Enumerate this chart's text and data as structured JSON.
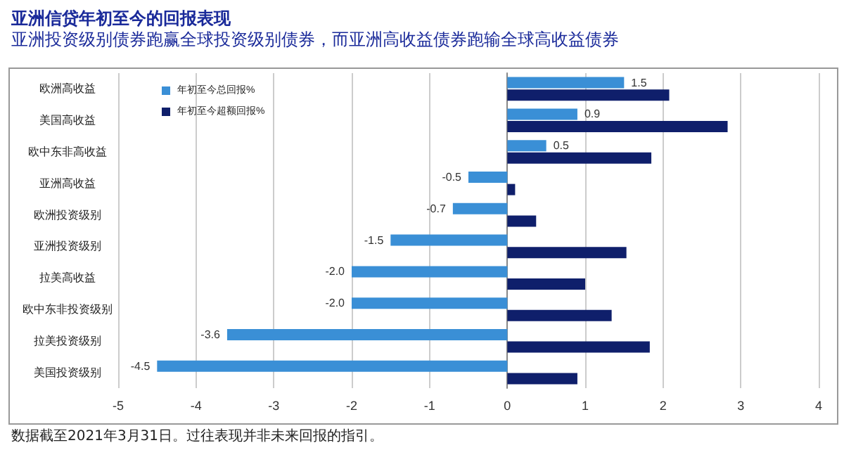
{
  "chart_data": {
    "type": "bar",
    "orientation": "horizontal",
    "title": "亚洲信贷年初至今的回报表现",
    "subtitle": "亚洲投资级别债券跑赢全球投资级别债券，而亚洲高收益债券跑输全球高收益债券",
    "categories": [
      "欧洲高收益",
      "美国高收益",
      "欧中东非高收益",
      "亚洲高收益",
      "欧洲投资级别",
      "亚洲投资级别",
      "拉美高收益",
      "欧中东非投资级别",
      "拉美投资级别",
      "美国投资级别"
    ],
    "series": [
      {
        "name": "年初至今总回报%",
        "color": "#3a8fd6",
        "values": [
          1.5,
          0.9,
          0.5,
          -0.5,
          -0.7,
          -1.5,
          -2.0,
          -2.0,
          -3.6,
          -4.5
        ],
        "value_labels": [
          "1.5",
          "0.9",
          "0.5",
          "-0.5",
          "-0.7",
          "-1.5",
          "-2.0",
          "-2.0",
          "-3.6",
          "-4.5"
        ]
      },
      {
        "name": "年初至今超额回报%",
        "color": "#0f1f6b",
        "values": [
          2.08,
          2.83,
          1.85,
          0.1,
          0.37,
          1.53,
          1.0,
          1.34,
          1.83,
          0.9
        ]
      }
    ],
    "xlim": [
      -5,
      4
    ],
    "xticks": [
      -5,
      -4,
      -3,
      -2,
      -1,
      0,
      1,
      2,
      3,
      4
    ],
    "grid": "x",
    "legend": "top left",
    "annotations": [
      "数据截至2021年3月31日。过往表现并非未来回报的指引。"
    ]
  }
}
